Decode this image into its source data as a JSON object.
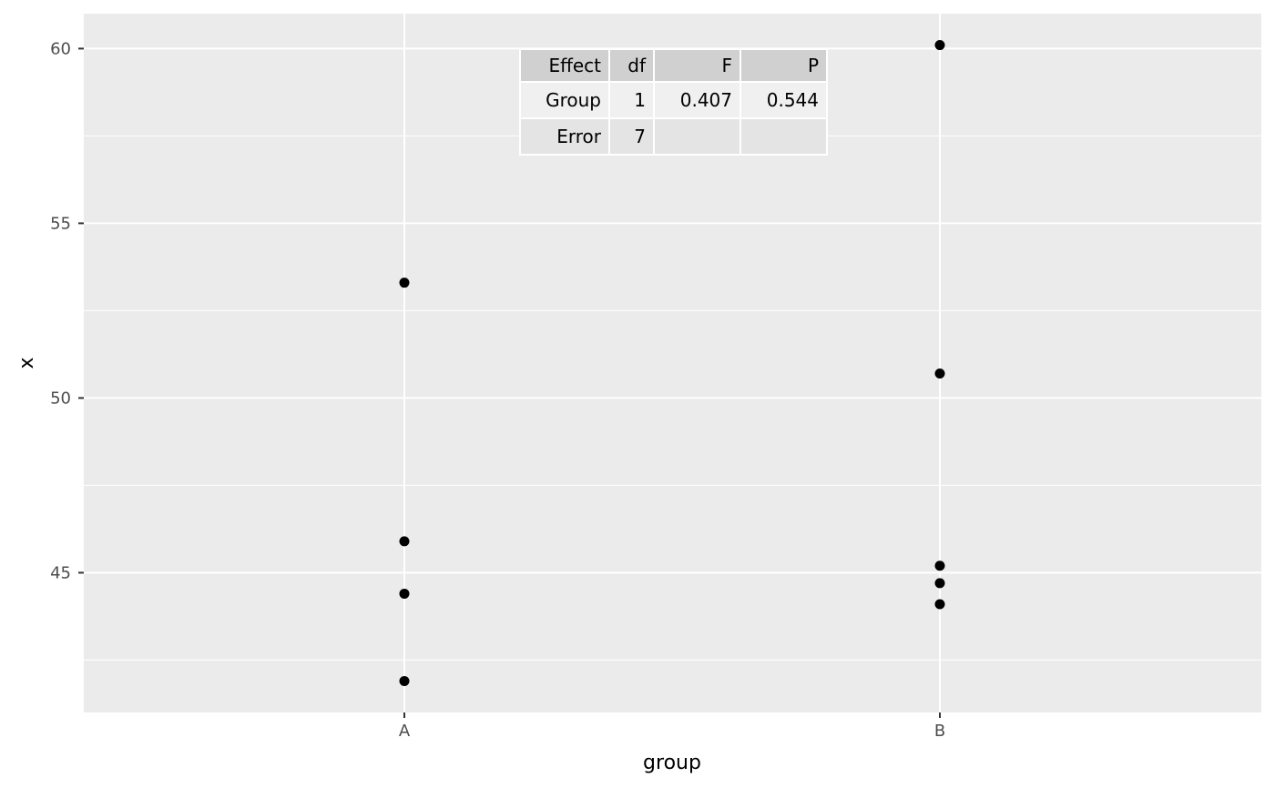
{
  "chart_data": {
    "type": "scatter",
    "xlabel": "group",
    "ylabel": "x",
    "categories": [
      "A",
      "B"
    ],
    "ylim": [
      41,
      61
    ],
    "yticks": [
      45,
      50,
      55,
      60
    ],
    "grid": true,
    "points": [
      {
        "x": "A",
        "y": 53.3
      },
      {
        "x": "A",
        "y": 45.9
      },
      {
        "x": "A",
        "y": 44.4
      },
      {
        "x": "A",
        "y": 41.9
      },
      {
        "x": "B",
        "y": 60.1
      },
      {
        "x": "B",
        "y": 50.7
      },
      {
        "x": "B",
        "y": 45.2
      },
      {
        "x": "B",
        "y": 44.7
      },
      {
        "x": "B",
        "y": 44.1
      }
    ],
    "annotation_table": {
      "headers": [
        "Effect",
        "df",
        "F",
        "P"
      ],
      "rows": [
        [
          "Group",
          "1",
          "0.407",
          "0.544"
        ],
        [
          "Error",
          "7",
          "",
          ""
        ]
      ]
    }
  }
}
